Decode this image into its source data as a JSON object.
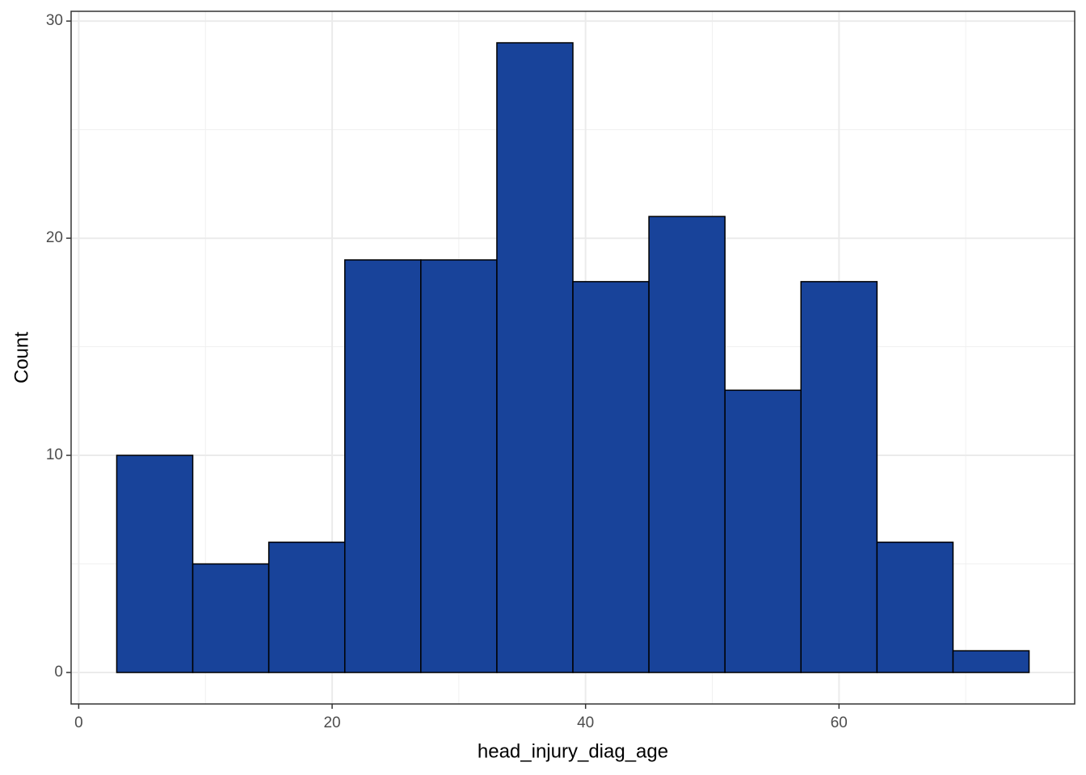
{
  "chart_data": {
    "type": "histogram",
    "x_label": "head_injury_diag_age",
    "y_label": "Count",
    "bins": [
      3,
      9,
      15,
      21,
      27,
      33,
      39,
      45,
      51,
      57,
      63,
      69,
      75
    ],
    "values": [
      10,
      5,
      6,
      19,
      19,
      29,
      18,
      21,
      13,
      18,
      6,
      1
    ],
    "color": "#18439a",
    "edgecolor": "#000000",
    "xlim": [
      -0.6,
      78.6
    ],
    "xticks": [
      0,
      20,
      40,
      60
    ],
    "xminor_ticks": [
      10,
      30,
      50,
      70
    ],
    "ylim": [
      -1.45,
      30.45
    ],
    "yticks": [
      0,
      10,
      20,
      30
    ],
    "yminor_ticks": [
      5,
      15,
      25
    ],
    "grid": true
  }
}
